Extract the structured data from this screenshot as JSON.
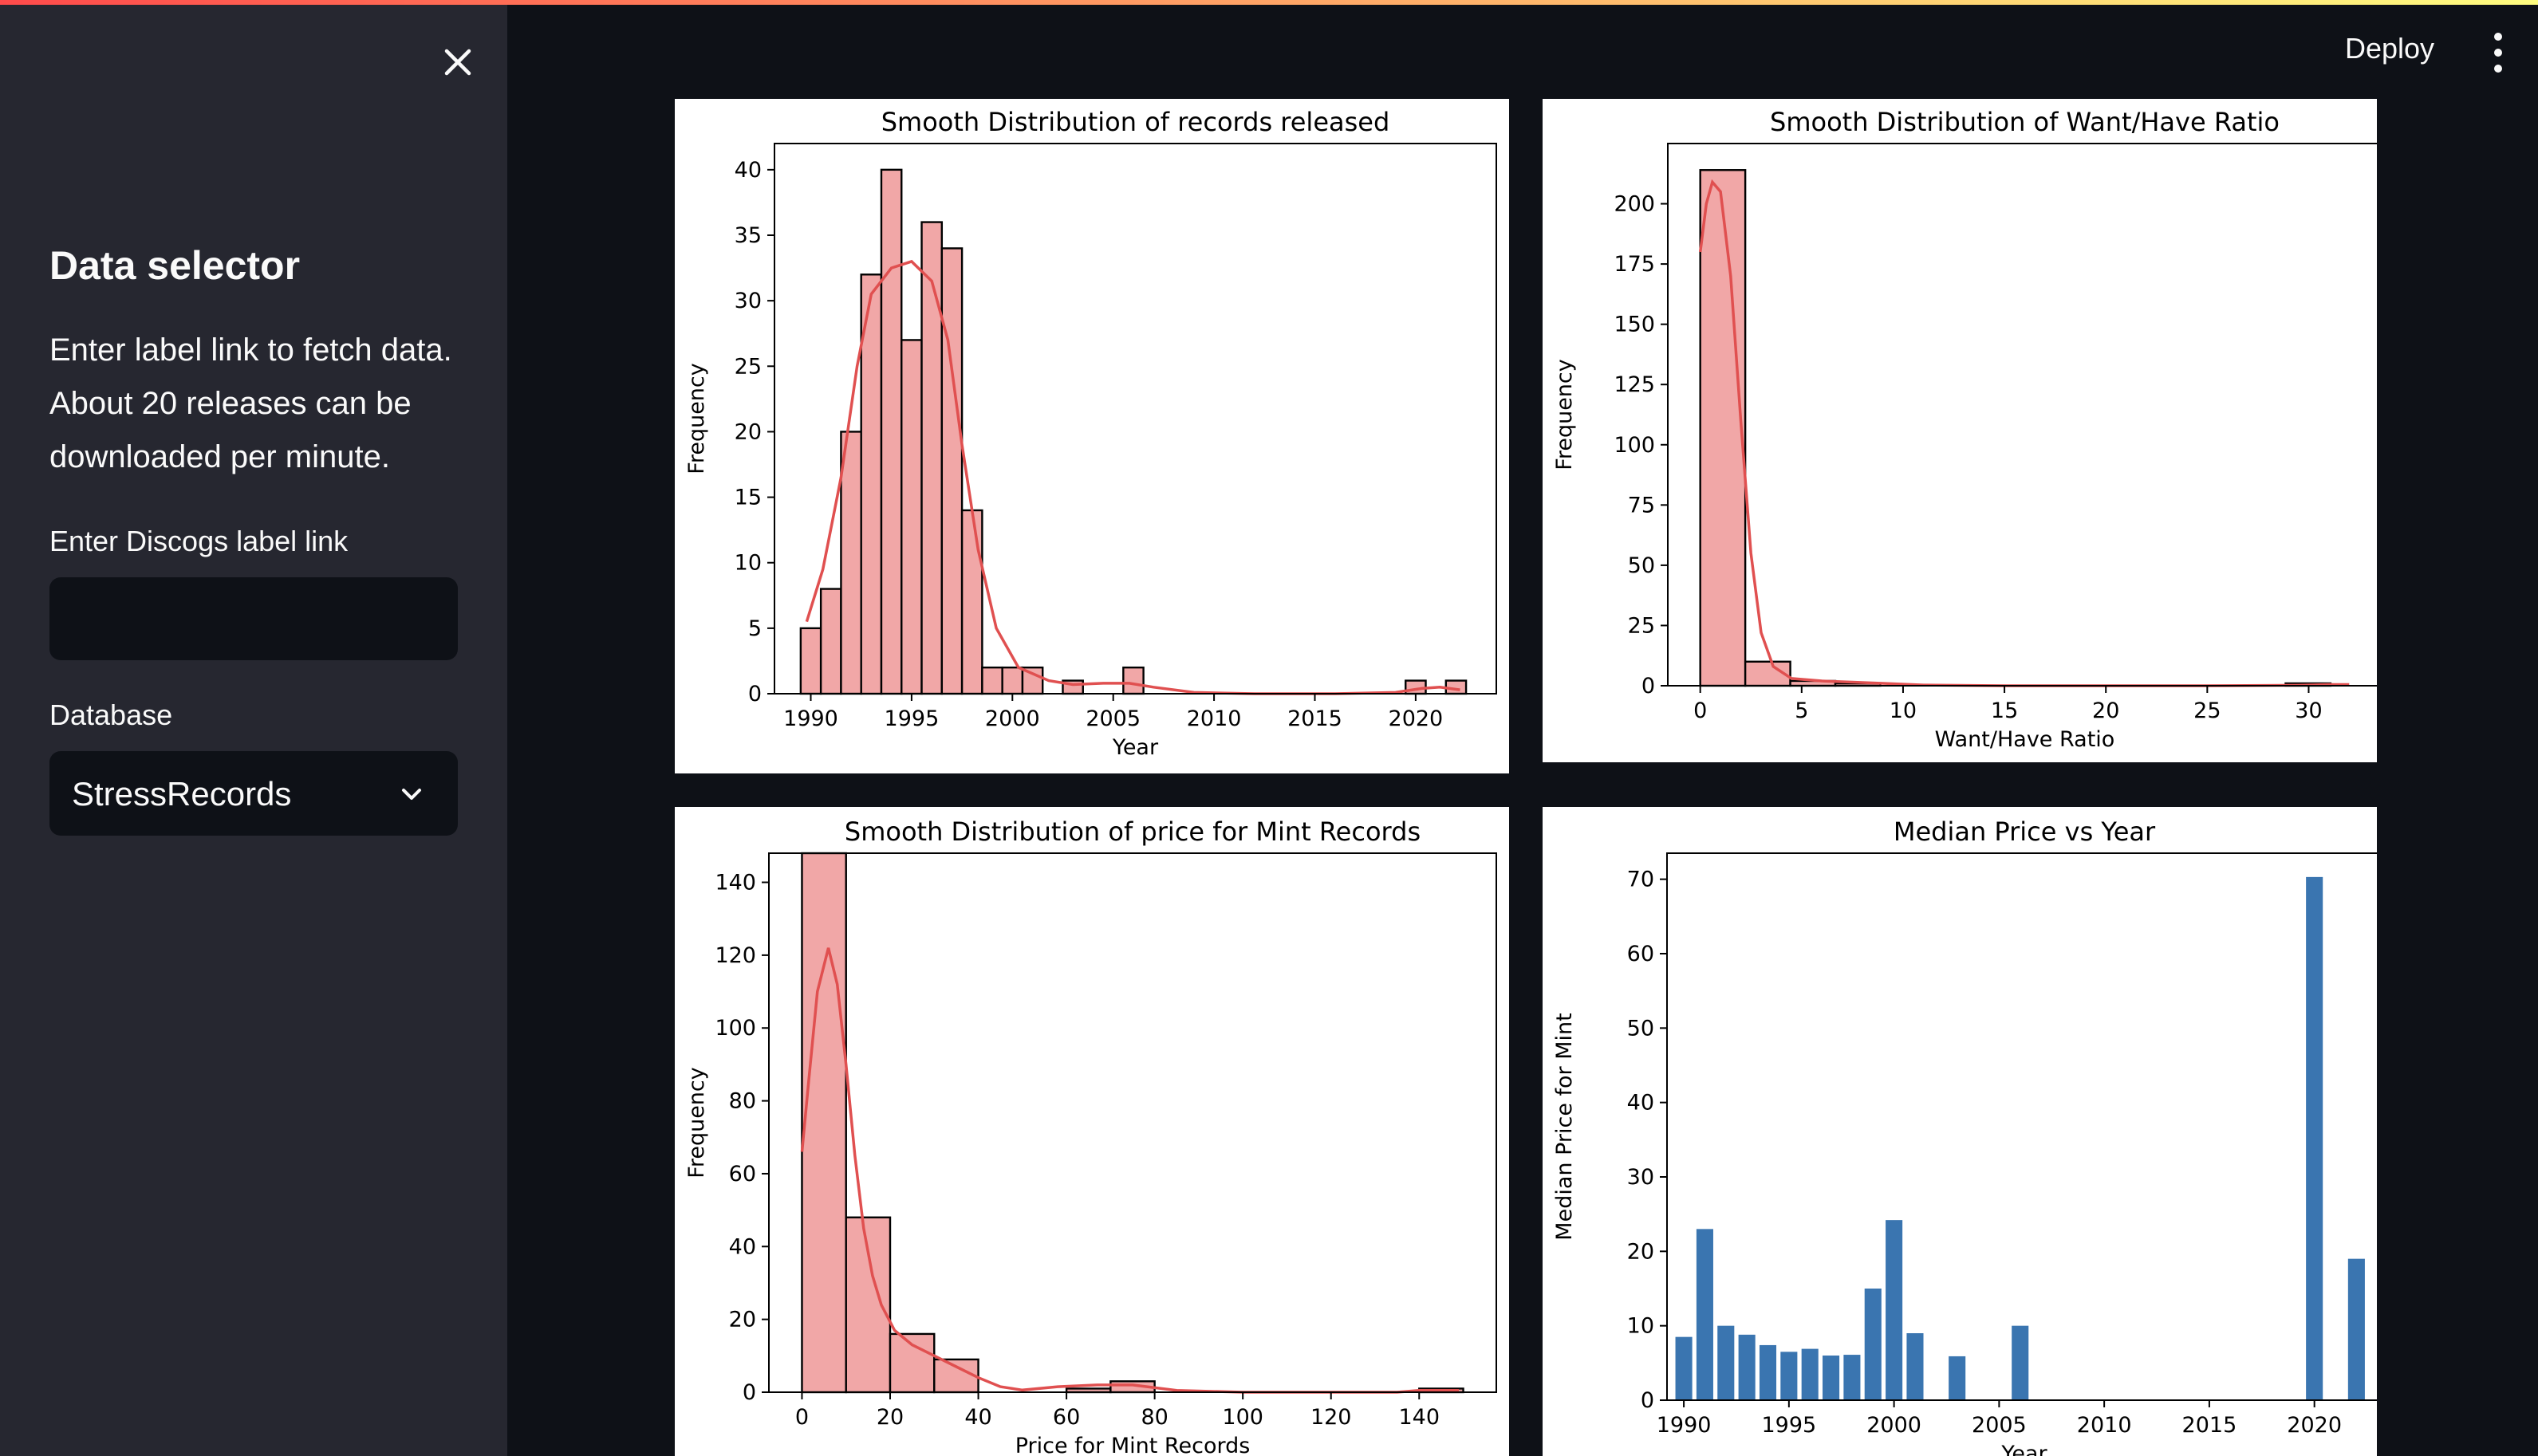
{
  "app": {
    "deploy_label": "Deploy",
    "menu_icon": "vertical-dots-icon",
    "close_icon": "close-icon"
  },
  "sidebar": {
    "title": "Data selector",
    "description": "Enter label link to fetch data. About 20 releases can be downloaded per minute.",
    "label_link": {
      "label": "Enter Discogs label link",
      "value": "",
      "placeholder": ""
    },
    "database": {
      "label": "Database",
      "value": "StressRecords"
    }
  },
  "chart_data": [
    {
      "type": "bar",
      "title": "Smooth Distribution of records released",
      "xlabel": "Year",
      "ylabel": "Frequency",
      "xlim": [
        1988.2,
        2024.0
      ],
      "ylim": [
        0,
        42
      ],
      "xticks": [
        1990,
        1995,
        2000,
        2005,
        2010,
        2015,
        2020
      ],
      "yticks": [
        0,
        5,
        10,
        15,
        20,
        25,
        30,
        35,
        40
      ],
      "bin_edges": [
        1989.5,
        1990.5,
        1991.5,
        1992.5,
        1993.5,
        1994.5,
        1995.5,
        1996.5,
        1997.5,
        1998.5,
        1999.5,
        2000.5,
        2001.5,
        2002.5,
        2003.5,
        2004.5,
        2005.5,
        2006.5,
        2007.5,
        2008.5,
        2009.5,
        2010.5,
        2011.5,
        2012.5,
        2013.5,
        2014.5,
        2015.5,
        2016.5,
        2017.5,
        2018.5,
        2019.5,
        2020.5,
        2021.5,
        2022.5
      ],
      "counts": [
        5,
        8,
        20,
        32,
        40,
        27,
        36,
        34,
        14,
        2,
        2,
        2,
        0,
        1,
        0,
        0,
        2,
        0,
        0,
        0,
        0,
        0,
        0,
        0,
        0,
        0,
        0,
        0,
        0,
        0,
        1,
        0,
        1
      ],
      "kde": [
        [
          1989.8,
          5.5
        ],
        [
          1990.6,
          9.5
        ],
        [
          1991.5,
          16.5
        ],
        [
          1992.3,
          25.0
        ],
        [
          1993.0,
          30.5
        ],
        [
          1994.0,
          32.5
        ],
        [
          1995.0,
          33.0
        ],
        [
          1996.0,
          31.5
        ],
        [
          1996.8,
          27.0
        ],
        [
          1997.5,
          19.0
        ],
        [
          1998.3,
          11.0
        ],
        [
          1999.2,
          5.0
        ],
        [
          2000.3,
          2.0
        ],
        [
          2001.8,
          1.0
        ],
        [
          2003.0,
          0.7
        ],
        [
          2004.5,
          0.8
        ],
        [
          2005.8,
          0.8
        ],
        [
          2007.0,
          0.5
        ],
        [
          2009.0,
          0.1
        ],
        [
          2012.0,
          0.0
        ],
        [
          2016.0,
          0.0
        ],
        [
          2019.0,
          0.1
        ],
        [
          2020.3,
          0.4
        ],
        [
          2021.2,
          0.5
        ],
        [
          2022.2,
          0.3
        ]
      ],
      "colors": {
        "fill": "#f1a7a7",
        "edge": "#000000",
        "kde": "#e05050"
      }
    },
    {
      "type": "bar",
      "title": "Smooth Distribution of Want/Have Ratio",
      "xlabel": "Want/Have Ratio",
      "ylabel": "Frequency",
      "xlim": [
        -1.6,
        33.6
      ],
      "ylim": [
        0,
        225
      ],
      "xticks": [
        0,
        5,
        10,
        15,
        20,
        25,
        30
      ],
      "yticks": [
        0,
        25,
        50,
        75,
        100,
        125,
        150,
        175,
        200
      ],
      "bin_edges": [
        0,
        2.22,
        4.44,
        6.66,
        8.88,
        11.1,
        13.32,
        15.54,
        17.76,
        19.98,
        22.2,
        24.42,
        26.64,
        28.86,
        31.08,
        33.3
      ],
      "counts": [
        214,
        10,
        2,
        1,
        0,
        0,
        0,
        0,
        0,
        0,
        0,
        0,
        0,
        1,
        0
      ],
      "kde": [
        [
          0.0,
          180
        ],
        [
          0.3,
          200
        ],
        [
          0.6,
          209
        ],
        [
          1.0,
          205
        ],
        [
          1.5,
          170
        ],
        [
          2.0,
          110
        ],
        [
          2.5,
          55
        ],
        [
          3.0,
          22
        ],
        [
          3.6,
          8
        ],
        [
          4.5,
          3
        ],
        [
          6.0,
          2
        ],
        [
          7.5,
          1.5
        ],
        [
          9.0,
          1
        ],
        [
          11.0,
          0.3
        ],
        [
          15.0,
          0
        ],
        [
          25.0,
          0
        ],
        [
          29.5,
          0.2
        ],
        [
          31.0,
          0.5
        ],
        [
          32.0,
          0.5
        ]
      ],
      "colors": {
        "fill": "#f1a7a7",
        "edge": "#000000",
        "kde": "#e05050"
      }
    },
    {
      "type": "bar",
      "title": "Smooth Distribution of price for Mint Records",
      "xlabel": "Price for Mint Records",
      "ylabel": "Frequency",
      "xlim": [
        -7.5,
        157.5
      ],
      "ylim": [
        0,
        148
      ],
      "xticks": [
        0,
        20,
        40,
        60,
        80,
        100,
        120,
        140
      ],
      "yticks": [
        0,
        20,
        40,
        60,
        80,
        100,
        120,
        140
      ],
      "bin_edges": [
        0,
        10,
        20,
        30,
        40,
        50,
        60,
        70,
        80,
        90,
        100,
        110,
        120,
        130,
        140,
        150
      ],
      "counts": [
        148,
        48,
        16,
        9,
        0,
        0,
        1,
        3,
        0,
        0,
        0,
        0,
        0,
        0,
        1
      ],
      "kde": [
        [
          0.0,
          66
        ],
        [
          1.5,
          85
        ],
        [
          3.5,
          110
        ],
        [
          6.0,
          122
        ],
        [
          8.0,
          112
        ],
        [
          10.0,
          90
        ],
        [
          12.0,
          65
        ],
        [
          14.0,
          45
        ],
        [
          16.0,
          32
        ],
        [
          18.0,
          24
        ],
        [
          21.0,
          17
        ],
        [
          25.0,
          13
        ],
        [
          30.0,
          10
        ],
        [
          35.0,
          7
        ],
        [
          40.0,
          4
        ],
        [
          45.0,
          1.5
        ],
        [
          50.0,
          0.6
        ],
        [
          58.0,
          1.5
        ],
        [
          67.0,
          2.0
        ],
        [
          75.0,
          2.0
        ],
        [
          85.0,
          0.5
        ],
        [
          100.0,
          0
        ],
        [
          135.0,
          0
        ],
        [
          140.0,
          0.5
        ],
        [
          149.0,
          0.5
        ]
      ],
      "colors": {
        "fill": "#f1a7a7",
        "edge": "#000000",
        "kde": "#e05050"
      }
    },
    {
      "type": "bar",
      "title": "Median Price vs Year",
      "xlabel": "Year",
      "ylabel": "Median Price for Mint",
      "xlim": [
        1989.2,
        2023.2
      ],
      "ylim": [
        0,
        73.5
      ],
      "xticks": [
        1990,
        1995,
        2000,
        2005,
        2010,
        2015,
        2020
      ],
      "yticks": [
        0,
        10,
        20,
        30,
        40,
        50,
        60,
        70
      ],
      "categories": [
        1990,
        1991,
        1992,
        1993,
        1994,
        1995,
        1996,
        1997,
        1998,
        1999,
        2000,
        2001,
        2003,
        2006,
        2020,
        2022
      ],
      "values": [
        8.5,
        23,
        10,
        8.8,
        7.4,
        6.5,
        6.9,
        6.0,
        6.1,
        15,
        24.2,
        9,
        5.9,
        10,
        70.3,
        19
      ],
      "colors": {
        "fill": "#3a75b0"
      }
    }
  ]
}
